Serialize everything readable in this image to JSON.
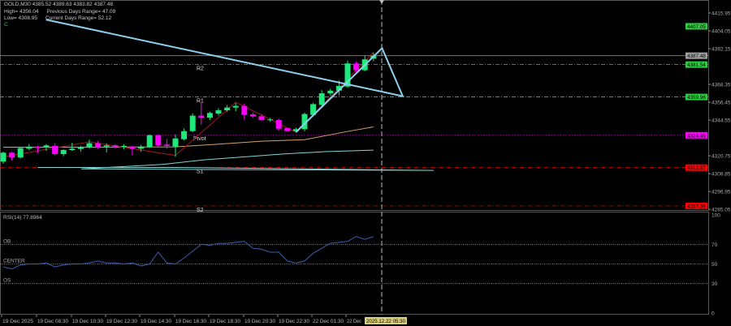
{
  "header": {
    "symbol_line": "GOLD,M30  4385.52 4389.63 4383.82 4387.48",
    "high": "High= 4356.04",
    "prev_range": "Previous Days Range= 47.09",
    "low": "Low= 4308.95",
    "curr_range": "Current Days Range= 52.12",
    "mark": "C"
  },
  "chart_data": [
    {
      "type": "candlestick",
      "symbol": "GOLD",
      "timeframe": "M30",
      "ylim": [
        4285.05,
        4415.95
      ],
      "yticks": [
        "4415.95",
        "4404.05",
        "4392.15",
        "4368.35",
        "4356.45",
        "4344.55",
        "4320.75",
        "4308.85",
        "4296.95",
        "4285.05"
      ],
      "xticks": [
        "19 Dec 2025",
        "19 Dec 08:30",
        "19 Dec 10:30",
        "19 Dec 12:30",
        "19 Dec 14:30",
        "19 Dec 16:30",
        "19 Dec 18:30",
        "19 Dec 20:30",
        "19 Dec 22:30",
        "22 Dec 01:30",
        "22 Dec"
      ],
      "cursor_time": "2025.12.22 05:30",
      "colors": {
        "up": "#1de97a",
        "down": "#ff00ff",
        "background": "#000000"
      },
      "ohlc": [
        [
          4316.9,
          4323.5,
          4315.5,
          4322.8
        ],
        [
          4322.8,
          4323.5,
          4317.5,
          4319.6
        ],
        [
          4319.6,
          4326.6,
          4319,
          4325.9
        ],
        [
          4325.5,
          4328.5,
          4324.5,
          4326.9
        ],
        [
          4326.9,
          4327.5,
          4322.5,
          4325.9
        ],
        [
          4326.2,
          4328.5,
          4324,
          4327.7
        ],
        [
          4327.3,
          4329,
          4321,
          4321.9
        ],
        [
          4321.9,
          4325,
          4320.5,
          4324.6
        ],
        [
          4324.6,
          4329.5,
          4324,
          4325.5
        ],
        [
          4325.3,
          4327.5,
          4323.5,
          4326.6
        ],
        [
          4326.4,
          4331.5,
          4325.5,
          4329.1
        ],
        [
          4329.1,
          4330.5,
          4325.5,
          4326.4
        ],
        [
          4326.9,
          4329,
          4323,
          4327.7
        ],
        [
          4327.8,
          4328.5,
          4325.5,
          4326.9
        ],
        [
          4326.9,
          4328.5,
          4325,
          4327.3
        ],
        [
          4326.9,
          4327.5,
          4321,
          4325.5
        ],
        [
          4325.5,
          4328,
          4323.5,
          4326.9
        ],
        [
          4326.4,
          4335,
          4326,
          4334.5
        ],
        [
          4334.5,
          4335,
          4327,
          4327.7
        ],
        [
          4328.2,
          4332,
          4325.5,
          4327.3
        ],
        [
          4326.9,
          4335,
          4320.1,
          4332.3
        ],
        [
          4331.8,
          4339,
          4331,
          4337.2
        ],
        [
          4337.2,
          4349,
          4336.5,
          4347.5
        ],
        [
          4347.5,
          4356.5,
          4341.5,
          4346.2
        ],
        [
          4346.2,
          4350,
          4344.5,
          4349.3
        ],
        [
          4348.9,
          4352.5,
          4347.5,
          4351.1
        ],
        [
          4351.1,
          4354.5,
          4350,
          4352.9
        ],
        [
          4352.9,
          4356,
          4350.5,
          4354
        ],
        [
          4354,
          4355.5,
          4345,
          4348
        ],
        [
          4348.4,
          4349.5,
          4346,
          4347.1
        ],
        [
          4347.1,
          4348.5,
          4344,
          4344.6
        ],
        [
          4344.6,
          4346,
          4343.5,
          4345
        ],
        [
          4344.6,
          4345.5,
          4337.5,
          4338.8
        ],
        [
          4339.2,
          4339.5,
          4336.5,
          4337.2
        ],
        [
          4337.2,
          4339.5,
          4336.5,
          4338.5
        ],
        [
          4338.5,
          4349.5,
          4337,
          4348.6
        ],
        [
          4348,
          4356,
          4347,
          4355.2
        ],
        [
          4354.7,
          4364.5,
          4354,
          4362.4
        ],
        [
          4362.4,
          4365.5,
          4361,
          4364.2
        ],
        [
          4364.2,
          4371,
          4361,
          4367.3
        ],
        [
          4366.9,
          4384.2,
          4366,
          4382.3
        ],
        [
          4382.3,
          4383.5,
          4376.5,
          4377.8
        ],
        [
          4377.8,
          4387.5,
          4377,
          4385
        ],
        [
          4385.52,
          4389.63,
          4383.82,
          4387.48
        ]
      ],
      "pivot_levels": [
        {
          "name": "R2",
          "value": 4381.54,
          "color": "#2ecc40"
        },
        {
          "name": "R1",
          "value": 4359.96,
          "color": "#2ecc40"
        },
        {
          "name": "Pivot",
          "value": 4334.45,
          "color": "#d000d0"
        },
        {
          "name": "S1",
          "value": 4312.87,
          "color": "#e00000"
        },
        {
          "name": "S2",
          "value": 4287.36,
          "color": "#e00000"
        }
      ],
      "price_tags": [
        {
          "value": "4407.05",
          "price": 4407.05,
          "color": "#2ecc40"
        },
        {
          "value": "4387.48",
          "price": 4387.48,
          "color": "#a0a0a0"
        },
        {
          "value": "4381.54",
          "price": 4381.54,
          "color": "#2ecc40"
        },
        {
          "value": "4359.96",
          "price": 4359.96,
          "color": "#2ecc40"
        },
        {
          "value": "4334.45",
          "price": 4334.45,
          "color": "#ff00ff"
        },
        {
          "value": "4312.87",
          "price": 4312.87,
          "color": "#ff0000"
        },
        {
          "value": "4287.36",
          "price": 4287.36,
          "color": "#ff0000"
        }
      ],
      "ma_slow": {
        "color": "#7fd4d4",
        "points": [
          [
            4,
            4313
          ],
          [
            20,
            4313
          ],
          [
            50,
            4311
          ],
          [
            100,
            4312
          ],
          [
            150,
            4313.5
          ],
          [
            200,
            4315
          ],
          [
            250,
            4318
          ],
          [
            300,
            4320
          ],
          [
            350,
            4322
          ],
          [
            400,
            4323.5
          ],
          [
            43,
            4324.5
          ]
        ]
      },
      "ma_fast": {
        "color": "#d2a36a",
        "points": [
          [
            0,
            4326.5
          ],
          [
            10,
            4326.5
          ],
          [
            20,
            4326.7
          ],
          [
            25,
            4328.5
          ],
          [
            30,
            4330.5
          ],
          [
            35,
            4331.5
          ],
          [
            40,
            4337
          ],
          [
            43,
            4340
          ]
        ]
      },
      "zigzag": {
        "color": "#a01818",
        "points": [
          [
            0,
            4320
          ],
          [
            10,
            4330
          ],
          [
            20,
            4321
          ],
          [
            27,
            4356.5
          ],
          [
            34,
            4336.5
          ],
          [
            43,
            4389.6
          ]
        ]
      },
      "projection": {
        "color": "#8fd0ee",
        "points": [
          [
            34,
            4336.5
          ],
          [
            44,
            4392.5
          ],
          [
            46.4,
            4360.5
          ],
          [
            56.6,
            4411.5
          ]
        ]
      }
    },
    {
      "type": "line",
      "title": "RSI(14) 77.8964",
      "ylim": [
        0,
        100
      ],
      "yticks": [
        "100",
        "70",
        "50",
        "30",
        "0"
      ],
      "levels": [
        {
          "name": "OB",
          "value": 70
        },
        {
          "name": "CENTER",
          "value": 50
        },
        {
          "name": "OS",
          "value": 30
        }
      ],
      "color": "#3a5fb0",
      "values": [
        47,
        45,
        49,
        50,
        50,
        51,
        47,
        49,
        50,
        50,
        51,
        53,
        51,
        51,
        50,
        51,
        48,
        50,
        62,
        51,
        50,
        56,
        63,
        70,
        69,
        71,
        71,
        72,
        73,
        66,
        65,
        62,
        62,
        53,
        51,
        53,
        61,
        66,
        71,
        72,
        73,
        78,
        75,
        77.9
      ]
    }
  ]
}
